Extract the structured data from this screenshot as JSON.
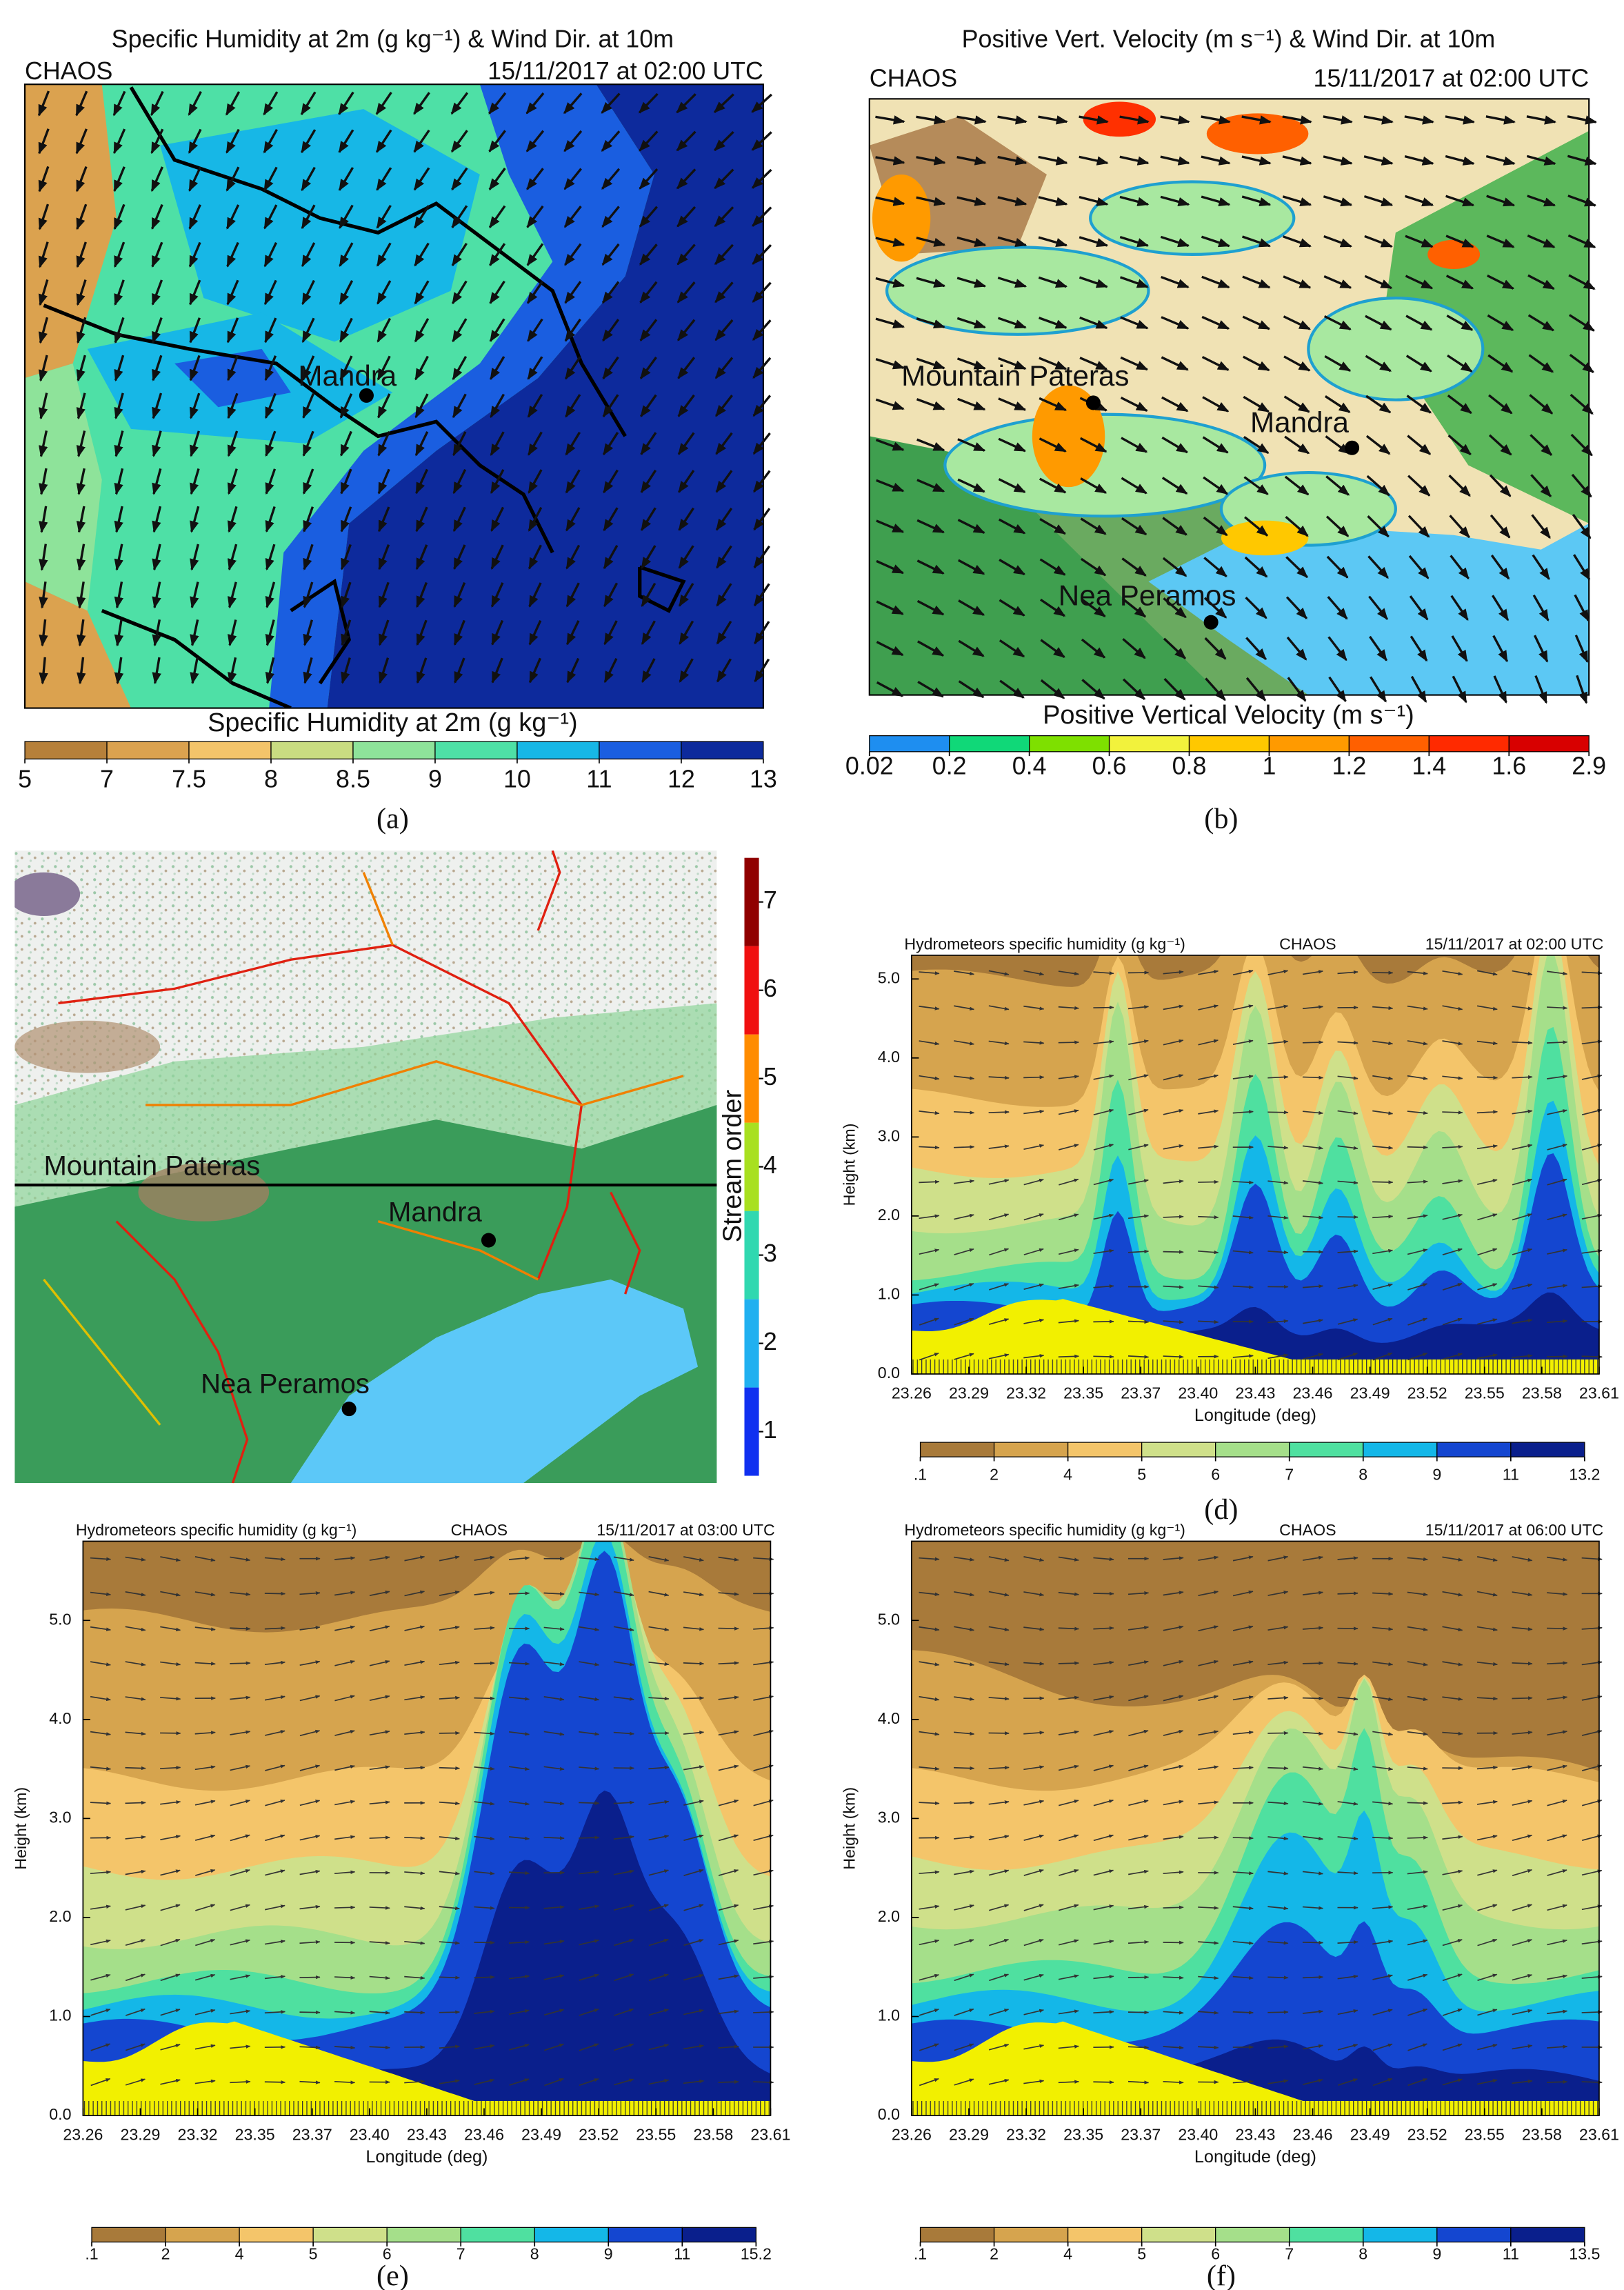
{
  "panels": [
    {
      "label": "(a)",
      "title": "Specific Humidity at 2m (g kg⁻¹) & Wind Dir. at 10m",
      "source": "CHAOS",
      "time": "15/11/2017 at 02:00 UTC",
      "places": [
        "Mandra"
      ],
      "colorbar": {
        "title": "Specific Humidity at 2m (g kg⁻¹)",
        "ticks": [
          5,
          7,
          7.5,
          8,
          8.5,
          9,
          10,
          11,
          12,
          13
        ],
        "colors": [
          "#b6803a",
          "#dba24f",
          "#f3c46a",
          "#c9dc81",
          "#8ee39a",
          "#4ee0a6",
          "#17b7e6",
          "#1a5ee0",
          "#0d2a9c"
        ]
      }
    },
    {
      "label": "(b)",
      "title": "Positive Vert. Velocity (m s⁻¹) & Wind Dir. at 10m",
      "source": "CHAOS",
      "time": "15/11/2017 at 02:00 UTC",
      "places": [
        "Mountain Pateras",
        "Mandra",
        "Nea Peramos"
      ],
      "colorbar": {
        "title": "Positive Vertical Velocity (m s⁻¹)",
        "ticks": [
          0.02,
          0.2,
          0.4,
          0.6,
          0.8,
          1,
          1.2,
          1.4,
          1.6,
          2.9
        ],
        "colors": [
          "#1e8ef0",
          "#10d878",
          "#7ee000",
          "#f2f23c",
          "#ffc800",
          "#ff9a00",
          "#ff6000",
          "#ff2a00",
          "#d80000"
        ]
      }
    },
    {
      "label": "(c)",
      "places": [
        "Mountain Pateras",
        "Mandra",
        "Nea Peramos"
      ],
      "colorbar": {
        "title": "Stream order",
        "ticks": [
          1,
          2,
          3,
          4,
          5,
          6,
          7
        ],
        "colors": [
          "#1030f0",
          "#20b0f0",
          "#30d8b0",
          "#a8e020",
          "#ff8c00",
          "#f01010",
          "#900000"
        ]
      }
    },
    {
      "label": "(d)",
      "title": "Hydrometeors specific humidity (g kg⁻¹)",
      "source": "CHAOS",
      "time": "15/11/2017 at 02:00 UTC",
      "y_axis": {
        "title": "Height (km)",
        "range": [
          0,
          5.3
        ],
        "ticks": [
          {
            "value": 0,
            "label": "0.0"
          },
          {
            "value": 1,
            "label": "1.0"
          },
          {
            "value": 2,
            "label": "2.0"
          },
          {
            "value": 3,
            "label": "3.0"
          },
          {
            "value": 4,
            "label": "4.0"
          },
          {
            "value": 5,
            "label": "5.0"
          }
        ]
      },
      "x_axis": {
        "title": "Longitude (deg)",
        "ticks": [
          23.26,
          23.29,
          23.32,
          23.35,
          23.37,
          {
            "value": 23.4,
            "label": "23.40"
          },
          23.43,
          23.46,
          23.49,
          23.52,
          23.55,
          23.58,
          23.61
        ]
      },
      "colorbar": {
        "ticks": [
          {
            "value": 0.1,
            "label": ".1"
          },
          2,
          4,
          5,
          6,
          7,
          8,
          9,
          11,
          13.2
        ],
        "colors": [
          "#a87a3a",
          "#d6a44e",
          "#f4c56a",
          "#cfe08a",
          "#a5df8a",
          "#4fe0a0",
          "#14b7e8",
          "#1446d0",
          "#0a1f8c"
        ]
      }
    },
    {
      "label": "(e)",
      "title": "Hydrometeors specific humidity (g kg⁻¹)",
      "source": "CHAOS",
      "time": "15/11/2017 at 03:00 UTC",
      "y_axis": {
        "title": "Height (km)",
        "range": [
          0,
          5.8
        ],
        "ticks": [
          {
            "value": 0,
            "label": "0.0"
          },
          {
            "value": 1,
            "label": "1.0"
          },
          {
            "value": 2,
            "label": "2.0"
          },
          {
            "value": 3,
            "label": "3.0"
          },
          {
            "value": 4,
            "label": "4.0"
          },
          {
            "value": 5,
            "label": "5.0"
          }
        ]
      },
      "x_axis": {
        "title": "Longitude (deg)",
        "ticks": [
          23.26,
          23.29,
          23.32,
          23.35,
          23.37,
          {
            "value": 23.4,
            "label": "23.40"
          },
          23.43,
          23.46,
          23.49,
          23.52,
          23.55,
          23.58,
          23.61
        ]
      },
      "colorbar": {
        "ticks": [
          {
            "value": 0.1,
            "label": ".1"
          },
          2,
          4,
          5,
          6,
          7,
          8,
          9,
          11,
          15.2
        ],
        "colors": [
          "#a87a3a",
          "#d6a44e",
          "#f4c56a",
          "#cfe08a",
          "#a5df8a",
          "#4fe0a0",
          "#14b7e8",
          "#1446d0",
          "#0a1f8c"
        ]
      }
    },
    {
      "label": "(f)",
      "title": "Hydrometeors specific humidity (g kg⁻¹)",
      "source": "CHAOS",
      "time": "15/11/2017 at 06:00 UTC",
      "y_axis": {
        "title": "Height (km)",
        "range": [
          0,
          5.8
        ],
        "ticks": [
          {
            "value": 0,
            "label": "0.0"
          },
          {
            "value": 1,
            "label": "1.0"
          },
          {
            "value": 2,
            "label": "2.0"
          },
          {
            "value": 3,
            "label": "3.0"
          },
          {
            "value": 4,
            "label": "4.0"
          },
          {
            "value": 5,
            "label": "5.0"
          }
        ]
      },
      "x_axis": {
        "title": "Longitude (deg)",
        "ticks": [
          23.26,
          23.29,
          23.32,
          23.35,
          23.37,
          {
            "value": 23.4,
            "label": "23.40"
          },
          23.43,
          23.46,
          23.49,
          23.52,
          23.55,
          23.58,
          23.61
        ]
      },
      "colorbar": {
        "ticks": [
          {
            "value": 0.1,
            "label": ".1"
          },
          2,
          4,
          5,
          6,
          7,
          8,
          9,
          11,
          13.5
        ],
        "colors": [
          "#a87a3a",
          "#d6a44e",
          "#f4c56a",
          "#cfe08a",
          "#a5df8a",
          "#4fe0a0",
          "#14b7e8",
          "#1446d0",
          "#0a1f8c"
        ]
      }
    }
  ]
}
